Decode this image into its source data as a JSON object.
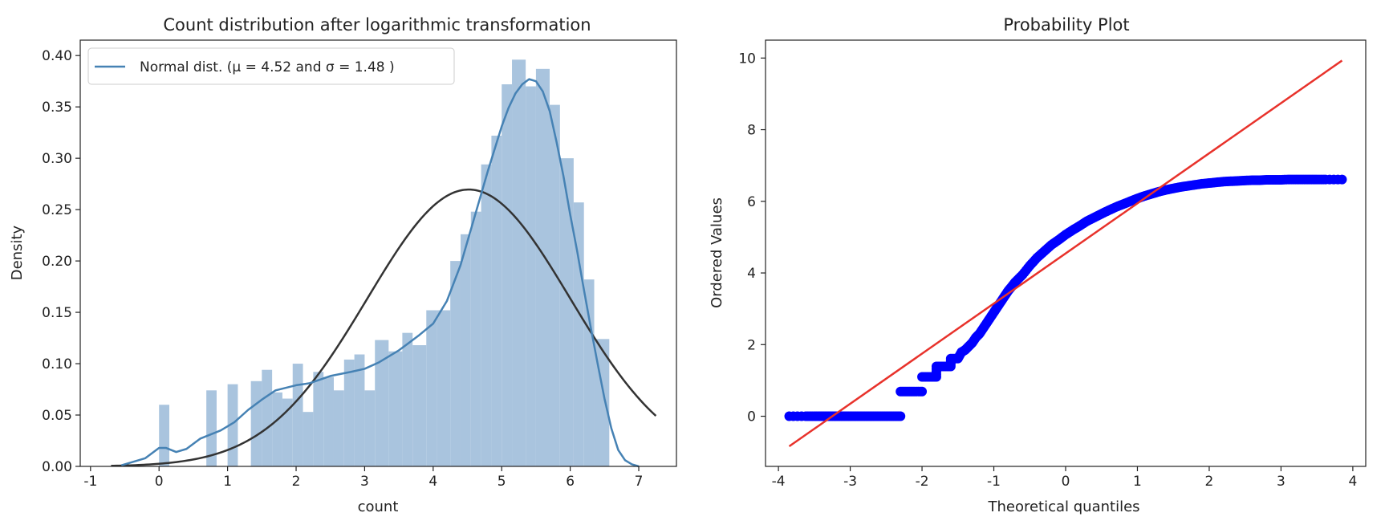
{
  "chart_data": [
    {
      "type": "histogram",
      "title": "Count distribution after logarithmic transformation",
      "xlabel": "count",
      "ylabel": "Density",
      "xlim": [
        -1.15,
        7.55
      ],
      "ylim": [
        0,
        0.415
      ],
      "xticks": [
        -1,
        0,
        1,
        2,
        3,
        4,
        5,
        6,
        7
      ],
      "xtick_labels": [
        "-1",
        "0",
        "1",
        "2",
        "3",
        "4",
        "5",
        "6",
        "7"
      ],
      "yticks": [
        0,
        0.05,
        0.1,
        0.15,
        0.2,
        0.25,
        0.3,
        0.35,
        0.4
      ],
      "ytick_labels": [
        "0.00",
        "0.05",
        "0.10",
        "0.15",
        "0.20",
        "0.25",
        "0.30",
        "0.35",
        "0.40"
      ],
      "grid": false,
      "legend_position": "top-left",
      "legend": {
        "label": "Normal dist. ($\\mu=$ 4.52 and $\\sigma=$ 1.48 )",
        "display_text": "Normal dist. (μ =  4.52 and σ =  1.48 )"
      },
      "normal_fit": {
        "mu": 4.52,
        "sigma": 1.48,
        "x_range": [
          -0.7,
          7.25
        ]
      },
      "histogram": {
        "bins": [
          {
            "x0": 0.0,
            "x1": 0.15,
            "density": 0.06
          },
          {
            "x0": 0.69,
            "x1": 0.84,
            "density": 0.074
          },
          {
            "x0": 1.0,
            "x1": 1.15,
            "density": 0.08
          },
          {
            "x0": 1.34,
            "x1": 1.5,
            "density": 0.083
          },
          {
            "x0": 1.5,
            "x1": 1.65,
            "density": 0.094
          },
          {
            "x0": 1.65,
            "x1": 1.8,
            "density": 0.072
          },
          {
            "x0": 1.8,
            "x1": 1.95,
            "density": 0.066
          },
          {
            "x0": 1.95,
            "x1": 2.1,
            "density": 0.1
          },
          {
            "x0": 2.1,
            "x1": 2.25,
            "density": 0.053
          },
          {
            "x0": 2.25,
            "x1": 2.4,
            "density": 0.092
          },
          {
            "x0": 2.4,
            "x1": 2.55,
            "density": 0.087
          },
          {
            "x0": 2.55,
            "x1": 2.7,
            "density": 0.074
          },
          {
            "x0": 2.7,
            "x1": 2.85,
            "density": 0.104
          },
          {
            "x0": 2.85,
            "x1": 3.0,
            "density": 0.109
          },
          {
            "x0": 3.0,
            "x1": 3.15,
            "density": 0.074
          },
          {
            "x0": 3.15,
            "x1": 3.35,
            "density": 0.123
          },
          {
            "x0": 3.35,
            "x1": 3.55,
            "density": 0.112
          },
          {
            "x0": 3.55,
            "x1": 3.7,
            "density": 0.13
          },
          {
            "x0": 3.7,
            "x1": 3.9,
            "density": 0.118
          },
          {
            "x0": 3.9,
            "x1": 4.05,
            "density": 0.152
          },
          {
            "x0": 4.05,
            "x1": 4.25,
            "density": 0.152
          },
          {
            "x0": 4.25,
            "x1": 4.4,
            "density": 0.2
          },
          {
            "x0": 4.4,
            "x1": 4.55,
            "density": 0.226
          },
          {
            "x0": 4.55,
            "x1": 4.7,
            "density": 0.248
          },
          {
            "x0": 4.7,
            "x1": 4.85,
            "density": 0.294
          },
          {
            "x0": 4.85,
            "x1": 5.0,
            "density": 0.322
          },
          {
            "x0": 5.0,
            "x1": 5.15,
            "density": 0.372
          },
          {
            "x0": 5.15,
            "x1": 5.35,
            "density": 0.396
          },
          {
            "x0": 5.35,
            "x1": 5.5,
            "density": 0.37
          },
          {
            "x0": 5.5,
            "x1": 5.7,
            "density": 0.387
          },
          {
            "x0": 5.7,
            "x1": 5.85,
            "density": 0.352
          },
          {
            "x0": 5.85,
            "x1": 6.05,
            "density": 0.3
          },
          {
            "x0": 6.05,
            "x1": 6.2,
            "density": 0.257
          },
          {
            "x0": 6.2,
            "x1": 6.35,
            "density": 0.182
          },
          {
            "x0": 6.35,
            "x1": 6.57,
            "density": 0.124
          }
        ]
      },
      "kde": {
        "x": [
          -0.55,
          -0.2,
          0.0,
          0.1,
          0.25,
          0.4,
          0.6,
          0.9,
          1.1,
          1.3,
          1.5,
          1.7,
          2.0,
          2.2,
          2.5,
          2.8,
          3.0,
          3.2,
          3.5,
          3.8,
          4.0,
          4.2,
          4.4,
          4.6,
          4.8,
          5.0,
          5.1,
          5.2,
          5.3,
          5.4,
          5.5,
          5.6,
          5.7,
          5.8,
          5.9,
          6.0,
          6.1,
          6.2,
          6.3,
          6.4,
          6.5,
          6.6,
          6.7,
          6.8,
          6.9,
          7.0
        ],
        "y": [
          0.001,
          0.008,
          0.018,
          0.018,
          0.014,
          0.017,
          0.027,
          0.035,
          0.043,
          0.055,
          0.065,
          0.074,
          0.079,
          0.081,
          0.088,
          0.092,
          0.095,
          0.101,
          0.113,
          0.128,
          0.139,
          0.161,
          0.196,
          0.242,
          0.288,
          0.331,
          0.349,
          0.363,
          0.372,
          0.377,
          0.375,
          0.365,
          0.346,
          0.316,
          0.283,
          0.245,
          0.21,
          0.172,
          0.135,
          0.1,
          0.066,
          0.037,
          0.016,
          0.006,
          0.002,
          0.0
        ]
      },
      "colors": {
        "hist": "#a9c4de",
        "kde": "#4682b4",
        "normal": "#333333"
      }
    },
    {
      "type": "scatter",
      "title": "Probability Plot",
      "xlabel": "Theoretical quantiles",
      "ylabel": "Ordered Values",
      "xlim": [
        -4.18,
        4.18
      ],
      "ylim": [
        -1.4,
        10.5
      ],
      "xticks": [
        -4,
        -3,
        -2,
        -1,
        0,
        1,
        2,
        3,
        4
      ],
      "xtick_labels": [
        "-4",
        "-3",
        "-2",
        "-1",
        "0",
        "1",
        "2",
        "3",
        "4"
      ],
      "yticks": [
        0,
        2,
        4,
        6,
        8,
        10
      ],
      "ytick_labels": [
        "0",
        "2",
        "4",
        "6",
        "8",
        "10"
      ],
      "grid": false,
      "fit_line": {
        "x": [
          -3.85,
          3.85
        ],
        "y": [
          -0.84,
          9.93
        ]
      },
      "points": {
        "x": [
          -3.85,
          -3.62,
          -3.5,
          -3.4,
          -3.3,
          -3.2,
          -3.1,
          -3.0,
          -2.9,
          -2.8,
          -2.7,
          -2.6,
          -2.5,
          -2.4,
          -2.3,
          -2.3,
          -2.2,
          -2.1,
          -2.0,
          -2.0,
          -1.9,
          -1.8,
          -1.8,
          -1.7,
          -1.6,
          -1.6,
          -1.5,
          -1.45,
          -1.4,
          -1.35,
          -1.3,
          -1.25,
          -1.2,
          -1.15,
          -1.1,
          -1.05,
          -1.0,
          -0.95,
          -0.9,
          -0.85,
          -0.8,
          -0.75,
          -0.7,
          -0.6,
          -0.5,
          -0.4,
          -0.3,
          -0.2,
          -0.1,
          0.0,
          0.1,
          0.2,
          0.3,
          0.4,
          0.5,
          0.6,
          0.7,
          0.8,
          0.9,
          1.0,
          1.1,
          1.2,
          1.3,
          1.4,
          1.5,
          1.6,
          1.7,
          1.8,
          1.9,
          2.0,
          2.1,
          2.2,
          2.3,
          2.4,
          2.5,
          2.6,
          2.7,
          2.8,
          2.9,
          3.0,
          3.1,
          3.2,
          3.3,
          3.4,
          3.5,
          3.62,
          3.85
        ],
        "y": [
          0.0,
          0.0,
          0.0,
          0.0,
          0.0,
          0.0,
          0.0,
          0.0,
          0.0,
          0.0,
          0.0,
          0.0,
          0.0,
          0.0,
          0.0,
          0.69,
          0.69,
          0.69,
          0.69,
          1.1,
          1.1,
          1.1,
          1.39,
          1.39,
          1.39,
          1.61,
          1.61,
          1.79,
          1.85,
          1.95,
          2.05,
          2.2,
          2.3,
          2.45,
          2.6,
          2.75,
          2.9,
          3.05,
          3.2,
          3.35,
          3.5,
          3.62,
          3.75,
          3.95,
          4.2,
          4.42,
          4.6,
          4.78,
          4.92,
          5.07,
          5.2,
          5.32,
          5.45,
          5.55,
          5.65,
          5.75,
          5.84,
          5.92,
          6.0,
          6.08,
          6.15,
          6.21,
          6.27,
          6.32,
          6.36,
          6.4,
          6.43,
          6.46,
          6.49,
          6.51,
          6.53,
          6.55,
          6.56,
          6.57,
          6.58,
          6.59,
          6.59,
          6.6,
          6.6,
          6.6,
          6.61,
          6.61,
          6.61,
          6.61,
          6.61,
          6.61,
          6.61
        ]
      },
      "colors": {
        "points": "#0000ff",
        "fit_line": "#e8322b"
      }
    }
  ]
}
